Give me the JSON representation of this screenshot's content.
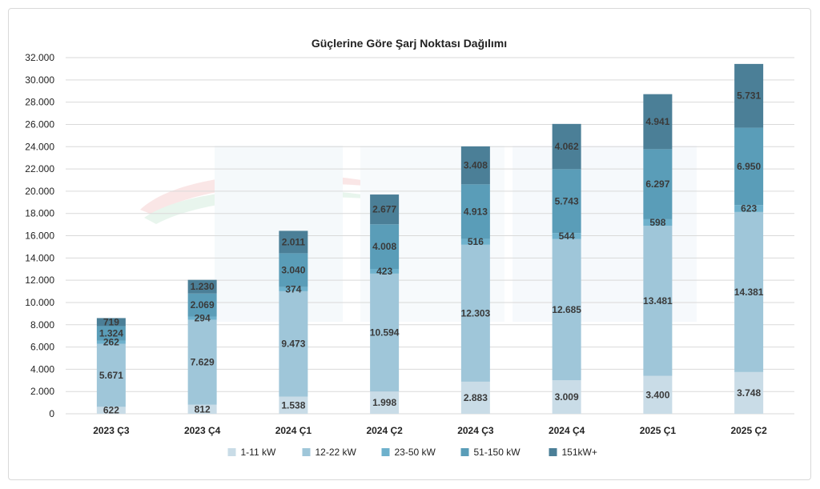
{
  "chart_data": {
    "type": "bar",
    "stacked": true,
    "title": "Güçlerine Göre Şarj Noktası Dağılımı",
    "xlabel": "",
    "ylabel": "",
    "ylim": [
      0,
      32000
    ],
    "yticks": [
      0,
      2000,
      4000,
      6000,
      8000,
      10000,
      12000,
      14000,
      16000,
      18000,
      20000,
      22000,
      24000,
      26000,
      28000,
      30000,
      32000
    ],
    "ytick_labels": [
      "0",
      "2.000",
      "4.000",
      "6.000",
      "8.000",
      "10.000",
      "12.000",
      "14.000",
      "16.000",
      "18.000",
      "20.000",
      "22.000",
      "24.000",
      "26.000",
      "28.000",
      "30.000",
      "32.000"
    ],
    "grid": true,
    "legend_position": "bottom",
    "categories": [
      "2023 Ç3",
      "2023 Ç4",
      "2024 Ç1",
      "2024 Ç2",
      "2024 Ç3",
      "2024 Ç4",
      "2025 Ç1",
      "2025 Ç2"
    ],
    "series": [
      {
        "name": "1-11 kW",
        "color": "#c9dce7",
        "values": [
          622,
          812,
          1538,
          1998,
          2883,
          3009,
          3400,
          3748
        ],
        "labels": [
          "622",
          "812",
          "1.538",
          "1.998",
          "2.883",
          "3.009",
          "3.400",
          "3.748"
        ]
      },
      {
        "name": "12-22 kW",
        "color": "#9fc6d9",
        "values": [
          5671,
          7629,
          9473,
          10594,
          12303,
          12685,
          13481,
          14381
        ],
        "labels": [
          "5.671",
          "7.629",
          "9.473",
          "10.594",
          "12.303",
          "12.685",
          "13.481",
          "14.381"
        ]
      },
      {
        "name": "23-50 kW",
        "color": "#6eb1cc",
        "values": [
          262,
          294,
          374,
          423,
          516,
          544,
          598,
          623
        ],
        "labels": [
          "262",
          "294",
          "374",
          "423",
          "516",
          "544",
          "598",
          "623"
        ]
      },
      {
        "name": "51-150 kW",
        "color": "#5a9db8",
        "values": [
          1324,
          2069,
          3040,
          4008,
          4913,
          5743,
          6297,
          6950
        ],
        "labels": [
          "1.324",
          "2.069",
          "3.040",
          "4.008",
          "4.913",
          "5.743",
          "6.297",
          "6.950"
        ]
      },
      {
        "name": "151kW+",
        "color": "#4b7f97",
        "values": [
          719,
          1230,
          2011,
          2677,
          3408,
          4062,
          4941,
          5731
        ],
        "labels": [
          "719",
          "1.230",
          "2.011",
          "2.677",
          "3.408",
          "4.062",
          "4.941",
          "5.731"
        ]
      }
    ]
  }
}
